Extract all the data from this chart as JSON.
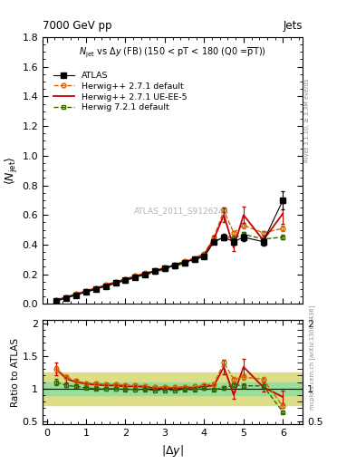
{
  "atlas_x": [
    0.25,
    0.5,
    0.75,
    1.0,
    1.25,
    1.5,
    1.75,
    2.0,
    2.25,
    2.5,
    2.75,
    3.0,
    3.25,
    3.5,
    3.75,
    4.0,
    4.25,
    4.5,
    4.75,
    5.0,
    5.5,
    6.0
  ],
  "atlas_y": [
    0.02,
    0.04,
    0.06,
    0.08,
    0.1,
    0.12,
    0.14,
    0.16,
    0.18,
    0.2,
    0.22,
    0.24,
    0.26,
    0.28,
    0.3,
    0.32,
    0.42,
    0.45,
    0.42,
    0.45,
    0.42,
    0.7
  ],
  "atlas_yerr": [
    0.002,
    0.002,
    0.002,
    0.002,
    0.002,
    0.002,
    0.002,
    0.003,
    0.003,
    0.003,
    0.003,
    0.003,
    0.004,
    0.004,
    0.005,
    0.008,
    0.015,
    0.02,
    0.02,
    0.025,
    0.025,
    0.06
  ],
  "hw271_x": [
    0.25,
    0.5,
    0.75,
    1.0,
    1.25,
    1.5,
    1.75,
    2.0,
    2.25,
    2.5,
    2.75,
    3.0,
    3.25,
    3.5,
    3.75,
    4.0,
    4.25,
    4.5,
    4.75,
    5.0,
    5.5,
    6.0
  ],
  "hw271_y": [
    0.026,
    0.047,
    0.067,
    0.087,
    0.108,
    0.128,
    0.15,
    0.168,
    0.19,
    0.208,
    0.226,
    0.246,
    0.267,
    0.288,
    0.31,
    0.338,
    0.45,
    0.63,
    0.48,
    0.53,
    0.48,
    0.51
  ],
  "hw271_yerr": [
    0.001,
    0.001,
    0.001,
    0.001,
    0.001,
    0.001,
    0.001,
    0.002,
    0.002,
    0.002,
    0.002,
    0.002,
    0.003,
    0.003,
    0.003,
    0.005,
    0.01,
    0.018,
    0.014,
    0.018,
    0.014,
    0.018
  ],
  "hw271ue_x": [
    0.25,
    0.5,
    0.75,
    1.0,
    1.25,
    1.5,
    1.75,
    2.0,
    2.25,
    2.5,
    2.75,
    3.0,
    3.25,
    3.5,
    3.75,
    4.0,
    4.25,
    4.5,
    4.75,
    5.0,
    5.5,
    6.0
  ],
  "hw271ue_y": [
    0.026,
    0.046,
    0.066,
    0.086,
    0.106,
    0.126,
    0.147,
    0.165,
    0.187,
    0.205,
    0.222,
    0.242,
    0.263,
    0.283,
    0.305,
    0.33,
    0.44,
    0.6,
    0.38,
    0.6,
    0.43,
    0.61
  ],
  "hw271ue_yerr": [
    0.002,
    0.002,
    0.002,
    0.002,
    0.002,
    0.002,
    0.002,
    0.003,
    0.003,
    0.003,
    0.003,
    0.003,
    0.004,
    0.005,
    0.006,
    0.01,
    0.018,
    0.05,
    0.022,
    0.055,
    0.03,
    0.07
  ],
  "hw721_x": [
    0.25,
    0.5,
    0.75,
    1.0,
    1.25,
    1.5,
    1.75,
    2.0,
    2.25,
    2.5,
    2.75,
    3.0,
    3.25,
    3.5,
    3.75,
    4.0,
    4.25,
    4.5,
    4.75,
    5.0,
    5.5,
    6.0
  ],
  "hw721_y": [
    0.022,
    0.042,
    0.062,
    0.081,
    0.1,
    0.12,
    0.14,
    0.158,
    0.178,
    0.196,
    0.215,
    0.234,
    0.254,
    0.274,
    0.296,
    0.322,
    0.415,
    0.455,
    0.445,
    0.47,
    0.438,
    0.45
  ],
  "hw721_yerr": [
    0.001,
    0.001,
    0.001,
    0.001,
    0.001,
    0.001,
    0.001,
    0.002,
    0.002,
    0.002,
    0.002,
    0.002,
    0.003,
    0.003,
    0.003,
    0.005,
    0.009,
    0.013,
    0.013,
    0.015,
    0.012,
    0.015
  ],
  "color_atlas": "#000000",
  "color_hw271": "#cc6600",
  "color_hw271ue": "#cc0000",
  "color_hw721": "#336600",
  "ylim_main": [
    0.0,
    1.8
  ],
  "ylim_ratio": [
    0.45,
    2.05
  ],
  "xlim": [
    -0.1,
    6.5
  ],
  "ratio_yticks": [
    0.5,
    1.0,
    1.5,
    2.0
  ],
  "ratio_yticklabels": [
    "0.5",
    "1",
    "1.5",
    "2"
  ],
  "main_yticks": [
    0.0,
    0.2,
    0.4,
    0.6,
    0.8,
    1.0,
    1.2,
    1.4,
    1.6,
    1.8
  ],
  "green_band": [
    0.9,
    1.1
  ],
  "yellow_band": [
    0.75,
    1.25
  ],
  "green_band_color": "#99dd99",
  "yellow_band_color": "#dddd88"
}
